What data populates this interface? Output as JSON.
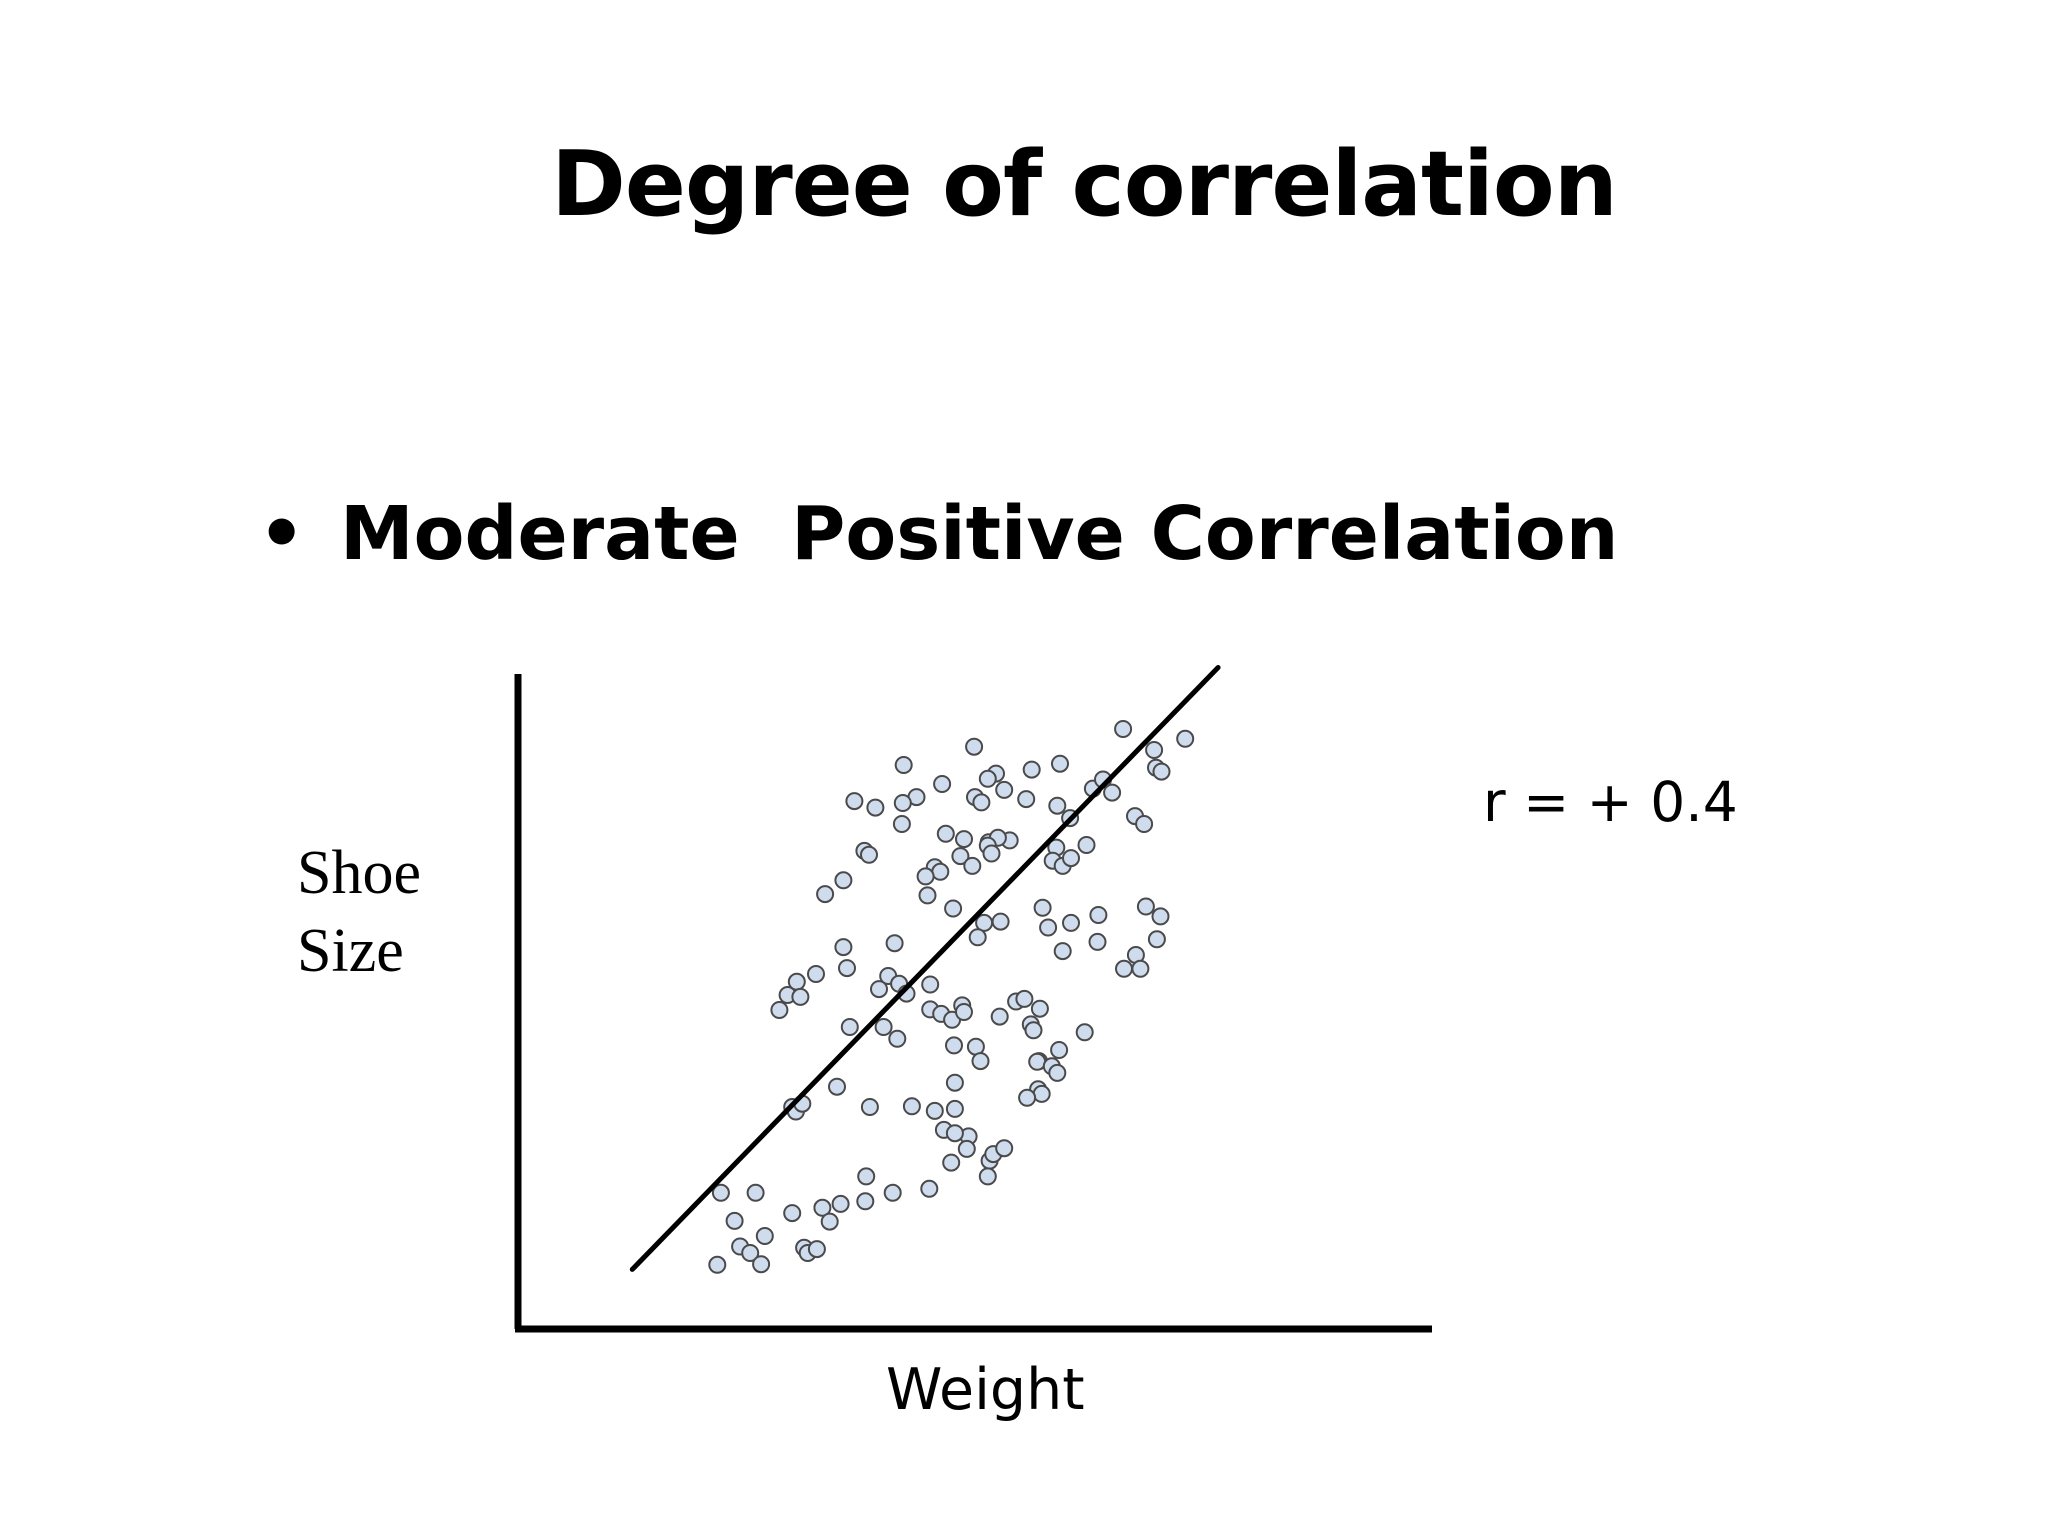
{
  "slide": {
    "title": "Degree of correlation",
    "bullet_symbol": "•",
    "bullet_text": "Moderate  Positive Correlation"
  },
  "chart_data": {
    "type": "scatter",
    "title": "",
    "xlabel": "Weight",
    "ylabel_lines": [
      "Shoe",
      "Size"
    ],
    "annotation": "r = + 0.4",
    "xlim": [
      0,
      100
    ],
    "ylim": [
      0,
      100
    ],
    "grid": false,
    "point_fill": "#cfdced",
    "point_stroke": "#4a4a4a",
    "line_color": "#000000",
    "axis_color": "#000000",
    "trendline": [
      [
        12.5,
        9.1
      ],
      [
        76.6,
        101.0
      ]
    ],
    "points": [
      [
        66.2,
        91.6
      ],
      [
        73.0,
        90.1
      ],
      [
        69.6,
        88.4
      ],
      [
        49.9,
        88.9
      ],
      [
        56.2,
        85.4
      ],
      [
        59.3,
        86.3
      ],
      [
        69.8,
        85.7
      ],
      [
        70.4,
        85.1
      ],
      [
        52.3,
        84.8
      ],
      [
        51.4,
        84.0
      ],
      [
        53.2,
        82.3
      ],
      [
        62.9,
        82.5
      ],
      [
        65.0,
        81.9
      ],
      [
        42.2,
        86.1
      ],
      [
        64.0,
        83.9
      ],
      [
        55.6,
        80.9
      ],
      [
        50.0,
        81.2
      ],
      [
        50.7,
        80.4
      ],
      [
        46.4,
        83.2
      ],
      [
        43.6,
        81.2
      ],
      [
        42.1,
        80.3
      ],
      [
        36.8,
        80.6
      ],
      [
        39.1,
        79.6
      ],
      [
        67.5,
        78.3
      ],
      [
        68.5,
        77.1
      ],
      [
        59.0,
        79.9
      ],
      [
        60.4,
        78.0
      ],
      [
        42.0,
        77.1
      ],
      [
        46.8,
        75.6
      ],
      [
        48.8,
        74.8
      ],
      [
        51.5,
        74.3
      ],
      [
        53.8,
        74.6
      ],
      [
        37.9,
        73.0
      ],
      [
        38.4,
        72.4
      ],
      [
        48.4,
        72.2
      ],
      [
        49.7,
        70.7
      ],
      [
        62.2,
        73.9
      ],
      [
        58.9,
        73.5
      ],
      [
        58.5,
        71.5
      ],
      [
        59.6,
        70.7
      ],
      [
        60.5,
        71.9
      ],
      [
        52.5,
        75.0
      ],
      [
        51.4,
        73.8
      ],
      [
        51.8,
        72.6
      ],
      [
        45.6,
        70.5
      ],
      [
        46.2,
        69.8
      ],
      [
        44.6,
        69.1
      ],
      [
        35.6,
        68.5
      ],
      [
        33.6,
        66.4
      ],
      [
        44.8,
        66.2
      ],
      [
        47.6,
        64.2
      ],
      [
        52.8,
        62.2
      ],
      [
        51.0,
        62.0
      ],
      [
        50.3,
        59.8
      ],
      [
        57.4,
        64.3
      ],
      [
        60.5,
        62.0
      ],
      [
        63.5,
        63.2
      ],
      [
        68.7,
        64.5
      ],
      [
        70.3,
        63.0
      ],
      [
        69.9,
        59.5
      ],
      [
        67.6,
        57.1
      ],
      [
        68.1,
        55.0
      ],
      [
        58.0,
        61.3
      ],
      [
        59.6,
        57.7
      ],
      [
        63.4,
        59.1
      ],
      [
        66.3,
        55.0
      ],
      [
        41.2,
        58.9
      ],
      [
        35.6,
        58.3
      ],
      [
        36.0,
        55.1
      ],
      [
        32.6,
        54.2
      ],
      [
        30.5,
        53.0
      ],
      [
        29.5,
        51.0
      ],
      [
        30.9,
        50.7
      ],
      [
        28.6,
        48.7
      ],
      [
        40.5,
        53.9
      ],
      [
        41.7,
        52.7
      ],
      [
        39.5,
        51.9
      ],
      [
        42.5,
        51.2
      ],
      [
        45.1,
        52.6
      ],
      [
        45.1,
        48.8
      ],
      [
        46.3,
        48.1
      ],
      [
        47.5,
        47.2
      ],
      [
        48.6,
        49.4
      ],
      [
        48.8,
        48.4
      ],
      [
        54.5,
        50.0
      ],
      [
        55.4,
        50.4
      ],
      [
        57.1,
        48.9
      ],
      [
        56.1,
        46.5
      ],
      [
        62.0,
        45.3
      ],
      [
        56.4,
        45.6
      ],
      [
        59.2,
        42.6
      ],
      [
        36.3,
        46.1
      ],
      [
        40.0,
        46.1
      ],
      [
        41.5,
        44.3
      ],
      [
        47.7,
        43.3
      ],
      [
        52.7,
        47.7
      ],
      [
        50.1,
        43.1
      ],
      [
        50.6,
        40.9
      ],
      [
        57.0,
        40.9
      ],
      [
        56.8,
        40.8
      ],
      [
        58.4,
        40.1
      ],
      [
        59.0,
        39.1
      ],
      [
        56.9,
        36.6
      ],
      [
        57.3,
        35.9
      ],
      [
        55.7,
        35.3
      ],
      [
        47.8,
        37.6
      ],
      [
        43.1,
        34.0
      ],
      [
        38.5,
        33.9
      ],
      [
        30.0,
        33.9
      ],
      [
        30.4,
        33.2
      ],
      [
        31.1,
        34.4
      ],
      [
        34.9,
        37.0
      ],
      [
        47.8,
        33.6
      ],
      [
        45.6,
        33.3
      ],
      [
        46.6,
        30.4
      ],
      [
        49.3,
        29.4
      ],
      [
        49.1,
        27.5
      ],
      [
        47.4,
        25.4
      ],
      [
        51.6,
        25.7
      ],
      [
        52.0,
        26.7
      ],
      [
        53.2,
        27.6
      ],
      [
        47.8,
        29.9
      ],
      [
        51.4,
        23.3
      ],
      [
        45.0,
        21.4
      ],
      [
        41.0,
        20.8
      ],
      [
        38.1,
        23.3
      ],
      [
        33.3,
        18.5
      ],
      [
        35.3,
        19.1
      ],
      [
        38.0,
        19.5
      ],
      [
        34.1,
        16.4
      ],
      [
        24.3,
        12.6
      ],
      [
        30.0,
        17.7
      ],
      [
        31.3,
        12.4
      ],
      [
        31.7,
        11.6
      ],
      [
        27.0,
        14.2
      ],
      [
        25.4,
        11.6
      ],
      [
        32.7,
        12.2
      ],
      [
        22.2,
        20.8
      ],
      [
        23.7,
        16.5
      ],
      [
        26.0,
        20.8
      ],
      [
        21.8,
        9.8
      ],
      [
        26.6,
        9.9
      ]
    ]
  }
}
